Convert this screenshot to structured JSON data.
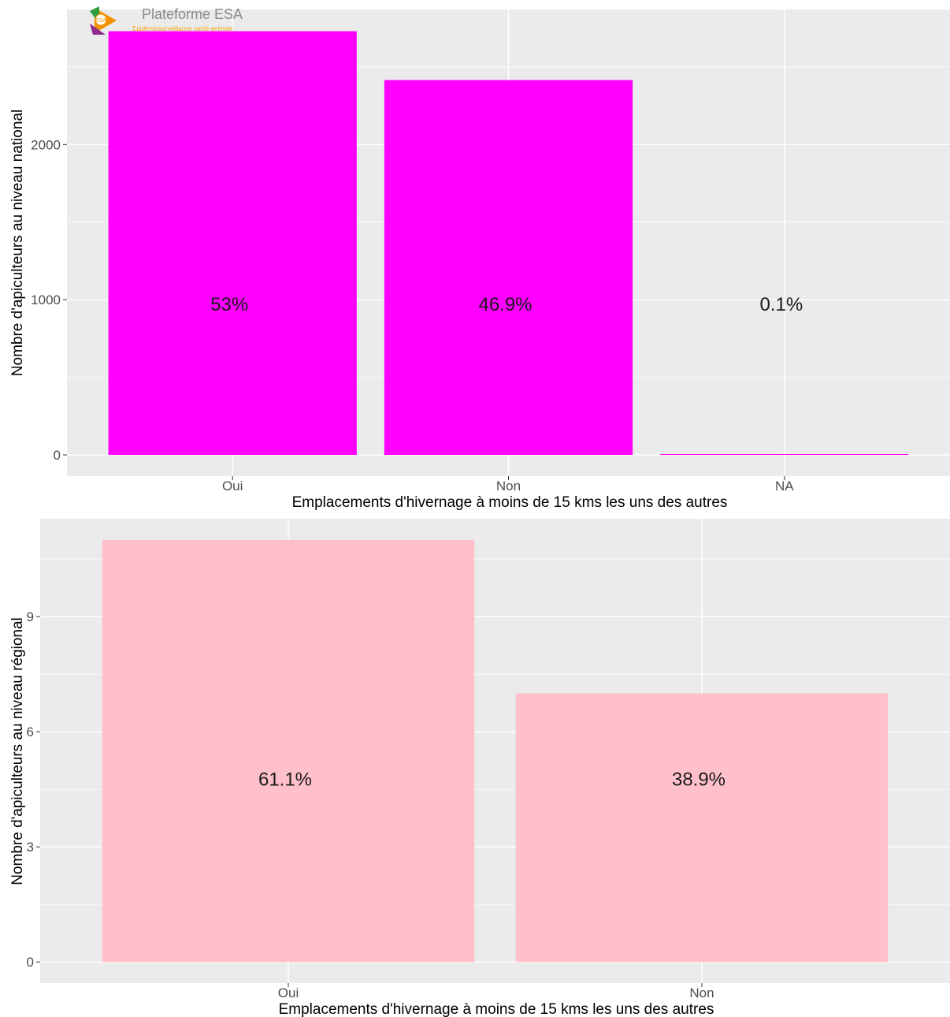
{
  "logo": {
    "title": "Plateforme ESA",
    "subtitle": "Epidémiosurveillance santé animale",
    "badge": "ESA"
  },
  "chart_data": [
    {
      "type": "bar",
      "categories": [
        "Oui",
        "Non",
        "NA"
      ],
      "values": [
        2730,
        2415,
        5
      ],
      "bar_labels": [
        "53%",
        "46.9%",
        "0.1%"
      ],
      "xlabel": "Emplacements d'hivernage à moins de 15 kms les uns des autres",
      "ylabel": "Nombre d'apiculteurs au niveau national",
      "yticks": [
        0,
        1000,
        2000
      ],
      "ylim": [
        -137,
        2870
      ],
      "bar_color": "#FF00FF",
      "panel_color": "#EBEBEB",
      "grid": true
    },
    {
      "type": "bar",
      "categories": [
        "Oui",
        "Non"
      ],
      "values": [
        11,
        7
      ],
      "bar_labels": [
        "61.1%",
        "38.9%"
      ],
      "xlabel": "Emplacements d'hivernage à moins de 15 kms les uns des autres",
      "ylabel": "Nombre d'apiculteurs au niveau régional",
      "yticks": [
        0,
        3,
        6,
        9
      ],
      "ylim": [
        -0.55,
        11.55
      ],
      "bar_color": "#FFC0CB",
      "panel_color": "#EBEBEB",
      "grid": true
    }
  ]
}
